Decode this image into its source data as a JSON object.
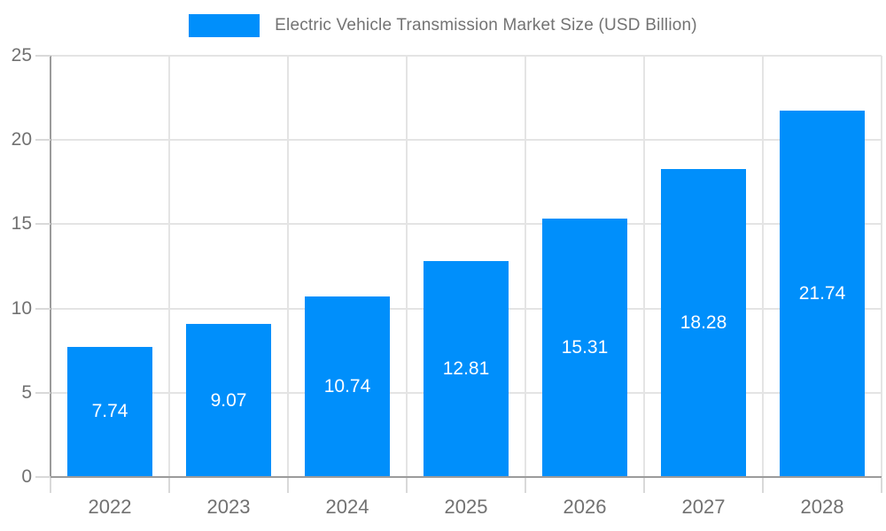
{
  "legend": {
    "label": "Electric Vehicle Transmission Market Size (USD Billion)",
    "swatch_color": "#008FFB"
  },
  "chart_data": {
    "type": "bar",
    "title": "Electric Vehicle Transmission Market Size (USD Billion)",
    "categories": [
      "2022",
      "2023",
      "2024",
      "2025",
      "2026",
      "2027",
      "2028"
    ],
    "values": [
      7.74,
      9.07,
      10.74,
      12.81,
      15.31,
      18.28,
      21.74
    ],
    "data_labels": [
      "7.74",
      "9.07",
      "10.74",
      "12.81",
      "15.31",
      "18.28",
      "21.74"
    ],
    "xlabel": "",
    "ylabel": "",
    "ylim": [
      0,
      25
    ],
    "yticks": [
      0,
      5,
      10,
      15,
      20,
      25
    ],
    "grid": true,
    "legend_position": "top",
    "bar_color": "#008FFB",
    "data_label_color": "#ffffff"
  },
  "colors": {
    "bar": "#008FFB",
    "grid": "#e4e4e4",
    "axis": "#9b9b9b",
    "tick": "#d9d9d9",
    "tick_label": "#717171",
    "legend_text": "#737373",
    "background": "#ffffff"
  }
}
